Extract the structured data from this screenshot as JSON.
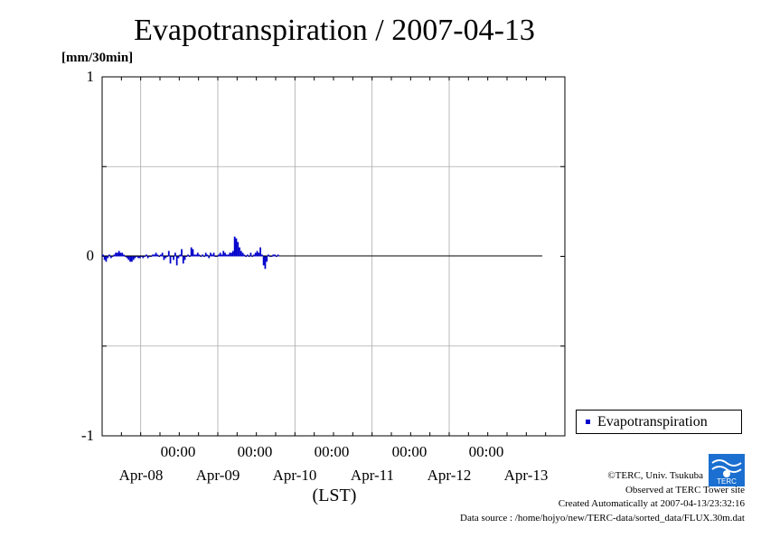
{
  "title": "Evapotranspiration / 2007-04-13",
  "unit_label": "[mm/30min]",
  "colors": {
    "series": "#0000cc",
    "grid": "#aaaaaa",
    "axis": "#000000",
    "logo": "#1a6fd0"
  },
  "axis": {
    "y_ticks": [
      "1",
      "0",
      "-1"
    ],
    "x_time_labels": [
      "00:00",
      "00:00",
      "00:00",
      "00:00",
      "00:00"
    ],
    "x_date_labels": [
      "Apr-08",
      "Apr-09",
      "Apr-10",
      "Apr-11",
      "Apr-12",
      "Apr-13"
    ],
    "xlabel": "(LST)"
  },
  "legend": {
    "label": "Evapotranspiration",
    "position": "right-bottom"
  },
  "credits": {
    "line1": "©TERC, Univ. Tsukuba",
    "line2": "Observed at TERC Tower site",
    "line3": "Created Automatically at 2007-04-13/23:32:16",
    "line4": "Data source : /home/hojyo/new/TERC-data/sorted_data/FLUX.30m.dat"
  },
  "logo_text": "TERC",
  "chart_data": {
    "type": "bar",
    "title": "Evapotranspiration / 2007-04-13",
    "ylabel": "[mm/30min]",
    "xlabel": "(LST)",
    "ylim": [
      -1,
      1
    ],
    "xlim_days": [
      0,
      6
    ],
    "x_unit": "days from Apr-07 12:00",
    "grid": true,
    "legend_position": "right-bottom",
    "series": [
      {
        "name": "Evapotranspiration",
        "interval_days": 0.020833,
        "start_day": 0.0,
        "values": [
          0.01,
          -0.02,
          -0.03,
          -0.01,
          0.01,
          -0.01,
          0.0,
          0.01,
          0.02,
          0.02,
          0.03,
          0.02,
          0.02,
          0.01,
          0.0,
          -0.01,
          -0.02,
          -0.03,
          -0.03,
          -0.02,
          -0.01,
          0.0,
          -0.01,
          -0.01,
          0.0,
          -0.01,
          0.0,
          0.01,
          -0.01,
          0.0,
          0.0,
          0.01,
          0.01,
          0.02,
          0.01,
          0.0,
          0.01,
          0.02,
          -0.02,
          -0.01,
          0.0,
          0.03,
          -0.04,
          0.0,
          -0.02,
          0.02,
          -0.05,
          -0.01,
          0.01,
          0.04,
          -0.04,
          -0.02,
          0.0,
          0.01,
          0.0,
          0.05,
          0.04,
          0.01,
          0.01,
          0.02,
          0.01,
          0.0,
          0.01,
          0.0,
          0.02,
          0.01,
          -0.01,
          0.02,
          0.01,
          0.02,
          0.0,
          0.0,
          0.01,
          0.02,
          0.01,
          0.03,
          0.02,
          0.01,
          0.01,
          0.02,
          0.02,
          0.03,
          0.11,
          0.1,
          0.08,
          0.05,
          0.03,
          0.02,
          0.01,
          0.0,
          0.01,
          0.0,
          0.02,
          0.0,
          0.01,
          0.02,
          0.03,
          0.02,
          0.05,
          0.01,
          -0.05,
          -0.07,
          -0.03,
          0.01,
          0.0,
          0.0,
          0.01,
          0.01,
          0.0,
          0.01
        ]
      }
    ]
  }
}
